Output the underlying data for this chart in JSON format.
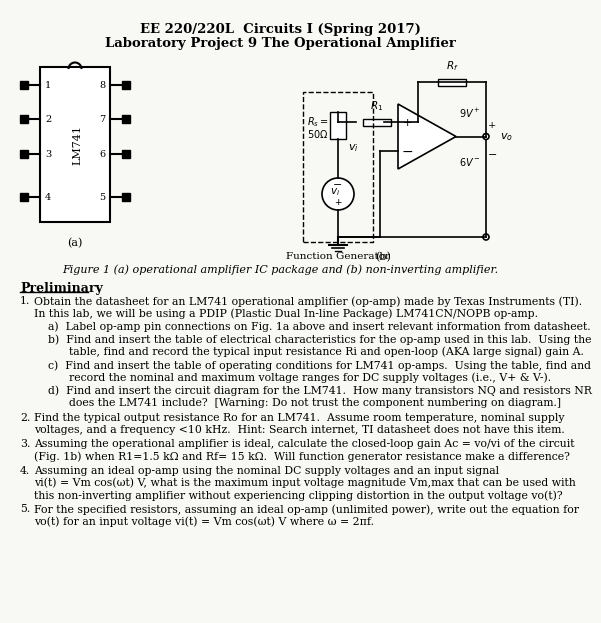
{
  "title1": "EE 220/220L  Circuits I (Spring 2017)",
  "title2": "Laboratory Project 9 The Operational Amplifier",
  "fig_caption": "Figure 1 (a) operational amplifier IC package and (b) non-inverting amplifier.",
  "prelim_header": "Preliminary",
  "item1_main": "Obtain the datasheet for an LM741 operational amplifier (op-amp) made by Texas Instruments (TI).\nIn this lab, we will be using a PDIP (Plastic Dual In-line Package) LM741CN/NOPB op-amp.",
  "item1_subs": [
    "a)  Label op-amp pin connections on Fig. 1a above and insert relevant information from datasheet.",
    "b)  Find and insert the table of electrical characteristics for the op-amp used in this lab.  Using the\n      table, find and record the typical input resistance Ri and open-loop (AKA large signal) gain A.",
    "c)  Find and insert the table of operating conditions for LM741 op-amps.  Using the table, find and\n      record the nominal and maximum voltage ranges for DC supply voltages (i.e., V+ & V-).",
    "d)  Find and insert the circuit diagram for the LM741.  How many transistors NQ and resistors NR\n      does the LM741 include?  [Warning: Do not trust the component numbering on diagram.]"
  ],
  "item2": "Find the typical output resistance Ro for an LM741.  Assume room temperature, nominal supply\nvoltages, and a frequency <10 kHz.  Hint: Search internet, TI datasheet does not have this item.",
  "item3": "Assuming the operational amplifier is ideal, calculate the closed-loop gain Ac = vo/vi of the circuit\n(Fig. 1b) when R1=1.5 kΩ and Rf= 15 kΩ.  Will function generator resistance make a difference?",
  "item4": "Assuming an ideal op-amp using the nominal DC supply voltages and an input signal\nvi(t) = Vm cos(ωt) V, what is the maximum input voltage magnitude Vm,max that can be used with\nthis non-inverting amplifier without experiencing clipping distortion in the output voltage vo(t)?",
  "item5": "For the specified resistors, assuming an ideal op-amp (unlimited power), write out the equation for\nvo(t) for an input voltage vi(t) = Vm cos(ωt) V where ω = 2πf.",
  "bg_color": "#f8f8f4",
  "text_color": "#000000"
}
